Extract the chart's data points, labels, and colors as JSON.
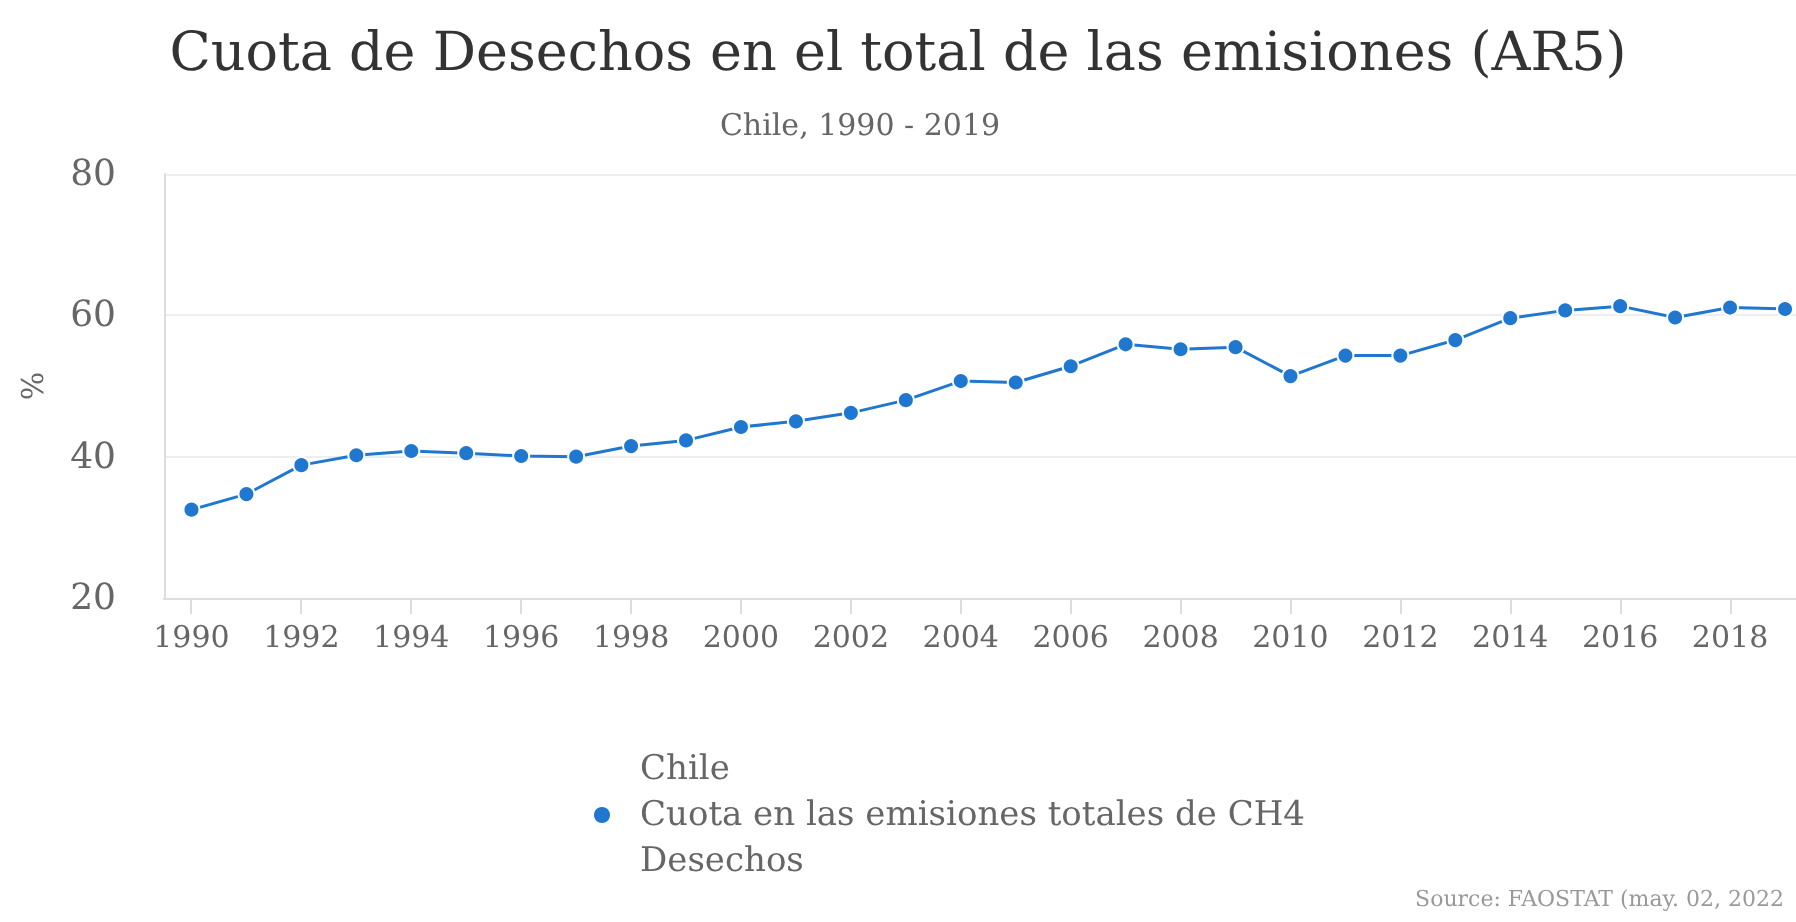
{
  "chart_data": {
    "type": "line",
    "title": "Cuota de Desechos en el total de las emisiones (AR5)",
    "subtitle": "Chile, 1990 - 2019",
    "ylabel": "%",
    "x": [
      1990,
      1991,
      1992,
      1993,
      1994,
      1995,
      1996,
      1997,
      1998,
      1999,
      2000,
      2001,
      2002,
      2003,
      2004,
      2005,
      2006,
      2007,
      2008,
      2009,
      2010,
      2011,
      2012,
      2013,
      2014,
      2015,
      2016,
      2017,
      2018,
      2019
    ],
    "series": [
      {
        "name": "Chile\nCuota en las emisiones totales de CH4\nDesechos",
        "color": "#1f77d0",
        "values": [
          32.5,
          34.7,
          38.8,
          40.2,
          40.8,
          40.5,
          40.1,
          40.0,
          41.5,
          42.3,
          44.2,
          45.0,
          46.2,
          48.0,
          50.7,
          50.5,
          52.8,
          55.9,
          55.2,
          55.5,
          51.4,
          54.3,
          54.3,
          56.5,
          59.6,
          60.7,
          61.3,
          59.7,
          61.1,
          60.9
        ]
      }
    ],
    "xlim": [
      1989.5,
      2019.2
    ],
    "xticks": [
      1990,
      1992,
      1994,
      1996,
      1998,
      2000,
      2002,
      2004,
      2006,
      2008,
      2010,
      2012,
      2014,
      2016,
      2018
    ],
    "ylim": [
      20,
      80
    ],
    "yticks": [
      20,
      40,
      60,
      80
    ],
    "grid": "y",
    "legend": "bottom",
    "marker": "circle",
    "line_style": "solid",
    "annotations": [
      "Source: FAOSTAT (may. 02, 2022"
    ]
  }
}
